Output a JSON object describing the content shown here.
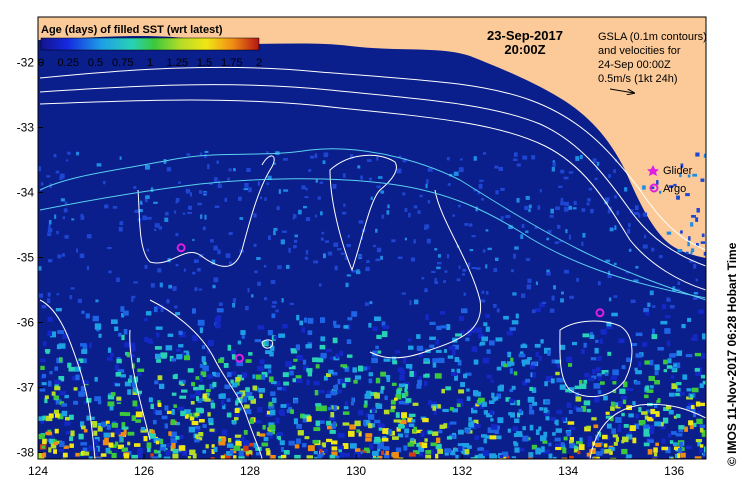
{
  "map": {
    "date": "23-Sep-2017",
    "time": "20:00Z",
    "info_lines": [
      "GSLA (0.1m contours)",
      "and velocities for",
      "24-Sep 00:00Z",
      "0.5m/s (1kt 24h)"
    ],
    "credit": "© IMOS 11-Nov-2017 06:28 Hobart Time",
    "colors": {
      "land": "#fcca98",
      "ocean": "#0a1e8c",
      "frame": "#000000"
    },
    "lon_range": [
      124,
      136.6
    ],
    "lat_range": [
      -38.1,
      -31.3
    ],
    "x_ticks": [
      "124",
      "126",
      "128",
      "130",
      "132",
      "134",
      "136"
    ],
    "y_ticks": [
      "-32",
      "-33",
      "-34",
      "-35",
      "-36",
      "-37",
      "-38"
    ]
  },
  "colorbar": {
    "title": "Age (days) of filled SST (wrt latest)",
    "ticks": [
      "0",
      "0.25",
      "0.5",
      "0.75",
      "1",
      "1.25",
      "1.5",
      "1.75",
      "2"
    ],
    "range": [
      0,
      2
    ]
  },
  "legend": {
    "glider_label": "Glider",
    "argo_label": "Argo",
    "glider_color": "#e020e0",
    "argo_color": "#e020e0"
  },
  "argo_floats": [
    {
      "lon": 126.7,
      "lat": -34.85
    },
    {
      "lon": 127.8,
      "lat": -36.55
    },
    {
      "lon": 134.6,
      "lat": -35.85
    }
  ]
}
